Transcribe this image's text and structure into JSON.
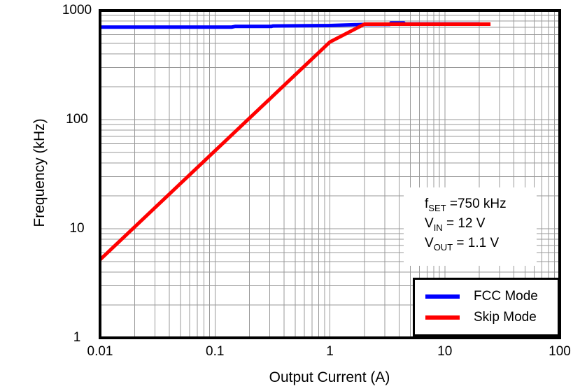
{
  "chart_data": {
    "type": "line",
    "title": "",
    "xlabel": "Output Current (A)",
    "ylabel": "Frequency (kHz)",
    "x_scale": "log",
    "y_scale": "log",
    "xlim": [
      0.01,
      100
    ],
    "ylim": [
      1,
      1000
    ],
    "grid": "major and minor log gridlines, gray, on",
    "legend_position": "lower right",
    "x_ticks": [
      {
        "label": "0.01",
        "value": 0.01
      },
      {
        "label": "0.1",
        "value": 0.1
      },
      {
        "label": "1",
        "value": 1
      },
      {
        "label": "10",
        "value": 10
      },
      {
        "label": "100",
        "value": 100
      }
    ],
    "y_ticks": [
      {
        "label": "1",
        "value": 1
      },
      {
        "label": "10",
        "value": 10
      },
      {
        "label": "100",
        "value": 100
      },
      {
        "label": "1000",
        "value": 1000
      }
    ],
    "series": [
      {
        "name": "FCC Mode",
        "color": "#0000FF",
        "points": [
          [
            0.01,
            705
          ],
          [
            0.14,
            705
          ],
          [
            0.15,
            715
          ],
          [
            0.31,
            715
          ],
          [
            0.32,
            722
          ],
          [
            1,
            728
          ],
          [
            2,
            745
          ],
          [
            3.3,
            745
          ],
          [
            3.4,
            768
          ],
          [
            4.4,
            768
          ],
          [
            4.5,
            752
          ],
          [
            20,
            752
          ]
        ]
      },
      {
        "name": "Skip Mode",
        "color": "#FF0000",
        "points": [
          [
            0.01,
            5.2
          ],
          [
            1,
            515
          ],
          [
            2,
            750
          ],
          [
            25,
            750
          ]
        ]
      }
    ]
  },
  "annotation": {
    "lines": [
      {
        "pre": "f",
        "sub": "SET",
        "post": " =750 kHz"
      },
      {
        "pre": "V",
        "sub": "IN",
        "post": " = 12 V"
      },
      {
        "pre": "V",
        "sub": "OUT",
        "post": " = 1.1 V"
      }
    ]
  },
  "legend": {
    "items": [
      {
        "label": "FCC Mode",
        "color": "#0000FF"
      },
      {
        "label": "Skip Mode",
        "color": "#FF0000"
      }
    ]
  },
  "colors": {
    "background": "#FFFFFF",
    "grid": "#999999",
    "axis": "#000000",
    "fcc_line": "#0000FF",
    "skip_line": "#FF0000"
  }
}
